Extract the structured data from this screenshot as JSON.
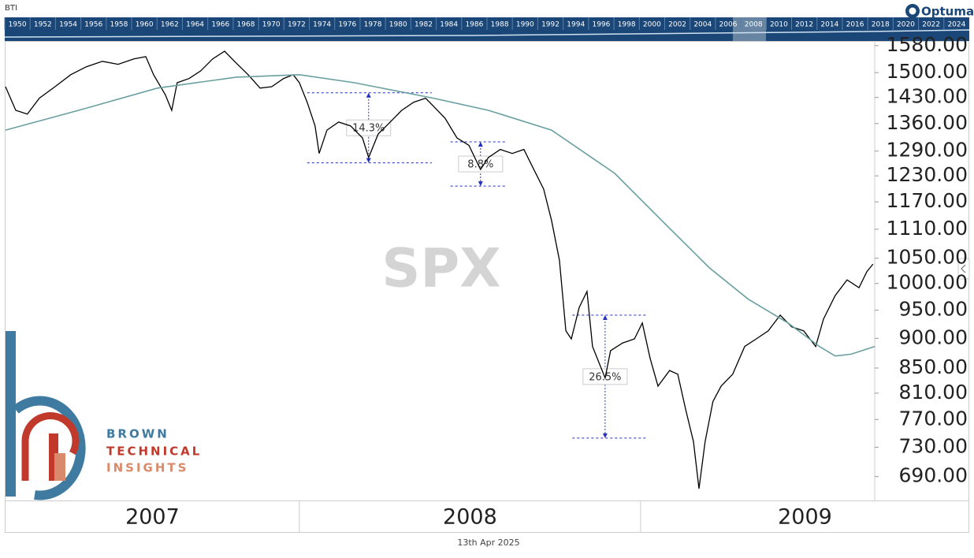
{
  "chart_data": {
    "type": "line",
    "chart_label": "BTI",
    "brand": "Optuma",
    "watermark": "SPX",
    "logo_lines": [
      "BROWN",
      "TECHNICAL",
      "INSIGHTS"
    ],
    "footer": "13th Apr 2025",
    "navigator_years": [
      1950,
      1952,
      1954,
      1956,
      1958,
      1960,
      1962,
      1964,
      1966,
      1968,
      1970,
      1972,
      1974,
      1976,
      1978,
      1980,
      1982,
      1984,
      1986,
      1988,
      1990,
      1992,
      1994,
      1996,
      1998,
      2000,
      2002,
      2004,
      2006,
      2008,
      2010,
      2012,
      2014,
      2016,
      2018,
      2020,
      2022,
      2024
    ],
    "log_y": true,
    "xlim": [
      2007.139,
      2009.686
    ],
    "xticks": [
      2008,
      2009
    ],
    "x_band_labels": [
      "2007",
      "2008",
      "2009"
    ],
    "ylim": [
      659,
      1594
    ],
    "yticks": [
      {
        "value": 1580,
        "label": "1580.00"
      },
      {
        "value": 1500,
        "label": "1500.00"
      },
      {
        "value": 1430,
        "label": "1430.00"
      },
      {
        "value": 1360,
        "label": "1360.00"
      },
      {
        "value": 1290,
        "label": "1290.00"
      },
      {
        "value": 1230,
        "label": "1230.00"
      },
      {
        "value": 1170,
        "label": "1170.00"
      },
      {
        "value": 1110,
        "label": "1110.00"
      },
      {
        "value": 1050,
        "label": "1050.00"
      },
      {
        "value": 1000,
        "label": "1000.00"
      },
      {
        "value": 950,
        "label": "950.00"
      },
      {
        "value": 900,
        "label": "900.00"
      },
      {
        "value": 850,
        "label": "850.00"
      },
      {
        "value": 810,
        "label": "810.00"
      },
      {
        "value": 770,
        "label": "770.00"
      },
      {
        "value": 730,
        "label": "730.00"
      },
      {
        "value": 690,
        "label": "690.00"
      }
    ],
    "series": [
      {
        "color": "#000000",
        "x": [
          2007.139,
          2007.169,
          2007.203,
          2007.238,
          2007.284,
          2007.33,
          2007.376,
          2007.423,
          2007.469,
          2007.515,
          2007.55,
          2007.573,
          2007.607,
          2007.626,
          2007.642,
          2007.677,
          2007.711,
          2007.746,
          2007.781,
          2007.815,
          2007.85,
          2007.885,
          2007.919,
          2007.954,
          2007.982,
          2008.0,
          2008.023,
          2008.046,
          2008.058,
          2008.081,
          2008.115,
          2008.15,
          2008.185,
          2008.203,
          2008.231,
          2008.266,
          2008.3,
          2008.335,
          2008.37,
          2008.393,
          2008.427,
          2008.462,
          2008.497,
          2008.531,
          2008.554,
          2008.589,
          2008.624,
          2008.658,
          2008.681,
          2008.716,
          2008.739,
          2008.762,
          2008.781,
          2008.797,
          2008.82,
          2008.843,
          2008.859,
          2008.878,
          2008.896,
          2008.912,
          2008.947,
          2008.982,
          2009.005,
          2009.028,
          2009.051,
          2009.085,
          2009.109,
          2009.132,
          2009.155,
          2009.171,
          2009.189,
          2009.212,
          2009.236,
          2009.27,
          2009.305,
          2009.339,
          2009.374,
          2009.409,
          2009.443,
          2009.478,
          2009.513,
          2009.536,
          2009.57,
          2009.605,
          2009.64,
          2009.663,
          2009.681
        ],
        "values": [
          1460,
          1395,
          1385,
          1428,
          1460,
          1494,
          1517,
          1533,
          1524,
          1540,
          1547,
          1494,
          1438,
          1395,
          1471,
          1483,
          1505,
          1540,
          1563,
          1528,
          1494,
          1456,
          1460,
          1483,
          1494,
          1471,
          1417,
          1354,
          1284,
          1343,
          1364,
          1354,
          1323,
          1274,
          1333,
          1364,
          1395,
          1417,
          1428,
          1406,
          1374,
          1323,
          1304,
          1245,
          1274,
          1294,
          1284,
          1294,
          1255,
          1199,
          1129,
          1046,
          913,
          899,
          955,
          985,
          886,
          859,
          834,
          879,
          892,
          899,
          927,
          866,
          821,
          846,
          840,
          785,
          738,
          674,
          738,
          797,
          821,
          840,
          886,
          899,
          913,
          941,
          920,
          913,
          886,
          934,
          977,
          1007,
          992,
          1023,
          1038
        ]
      },
      {
        "color": "#6a9fa0",
        "x": [
          2007.139,
          2007.353,
          2007.584,
          2007.815,
          2008.0,
          2008.162,
          2008.393,
          2008.554,
          2008.739,
          2008.924,
          2009.085,
          2009.201,
          2009.316,
          2009.432,
          2009.524,
          2009.57,
          2009.617,
          2009.686
        ],
        "values": [
          1343,
          1395,
          1456,
          1487,
          1494,
          1471,
          1428,
          1395,
          1343,
          1236,
          1112,
          1031,
          970,
          927,
          886,
          870,
          873,
          886
        ]
      }
    ],
    "annotations": [
      {
        "label": "14.3%",
        "top": 1443,
        "bottom": 1261,
        "x_start": 2008.023,
        "x_end": 2008.388,
        "x_arrow": 2008.203
      },
      {
        "label": "8.8%",
        "top": 1313,
        "bottom": 1206,
        "x_start": 2008.443,
        "x_end": 2008.605,
        "x_arrow": 2008.531
      },
      {
        "label": "26.5%",
        "top": 941,
        "bottom": 743,
        "x_start": 2008.8,
        "x_end": 2009.02,
        "x_arrow": 2008.896
      }
    ]
  }
}
